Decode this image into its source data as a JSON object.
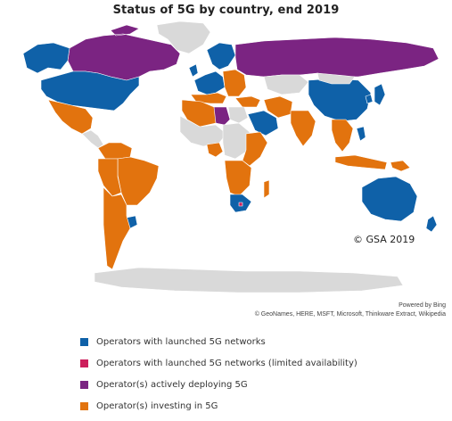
{
  "title": "Status of 5G by country, end 2019",
  "copyright": "© GSA 2019",
  "powered_by": "Powered by Bing",
  "credits": "© GeoNames, HERE, MSFT, Microsoft, Thinkware Extract, Wikipedia",
  "colors": {
    "launched": "#0f61a8",
    "limited": "#cc1f5c",
    "deploying": "#7b2482",
    "investing": "#e2730e",
    "no_data": "#d9d9d9",
    "border": "#ffffff"
  },
  "legend": [
    {
      "label": "Operators with launched 5G networks",
      "color": "#0f61a8",
      "key": "launched"
    },
    {
      "label": "Operators with launched 5G networks (limited availability)",
      "color": "#cc1f5c",
      "key": "limited"
    },
    {
      "label": "Operator(s) actively deploying 5G",
      "color": "#7b2482",
      "key": "deploying"
    },
    {
      "label": "Operator(s) investing in 5G",
      "color": "#e2730e",
      "key": "investing"
    }
  ],
  "regions": [
    {
      "name": "Canada",
      "status": "deploying"
    },
    {
      "name": "Alaska",
      "status": "launched"
    },
    {
      "name": "United States",
      "status": "launched"
    },
    {
      "name": "Greenland",
      "status": "no_data"
    },
    {
      "name": "Mexico",
      "status": "investing"
    },
    {
      "name": "Central America",
      "status": "no_data"
    },
    {
      "name": "Colombia / Venezuela",
      "status": "investing"
    },
    {
      "name": "Brazil",
      "status": "investing"
    },
    {
      "name": "Peru / Bolivia",
      "status": "investing"
    },
    {
      "name": "Uruguay",
      "status": "launched"
    },
    {
      "name": "Argentina / Chile",
      "status": "investing"
    },
    {
      "name": "UK / Ireland",
      "status": "launched"
    },
    {
      "name": "Western Europe",
      "status": "launched"
    },
    {
      "name": "Southern Europe",
      "status": "investing"
    },
    {
      "name": "Scandinavia",
      "status": "launched"
    },
    {
      "name": "Eastern Europe",
      "status": "investing"
    },
    {
      "name": "Russia",
      "status": "deploying"
    },
    {
      "name": "Kazakhstan",
      "status": "no_data"
    },
    {
      "name": "Turkey",
      "status": "investing"
    },
    {
      "name": "Saudi Arabia / Gulf",
      "status": "launched"
    },
    {
      "name": "Iran",
      "status": "investing"
    },
    {
      "name": "Egypt",
      "status": "no_data"
    },
    {
      "name": "Libya",
      "status": "deploying"
    },
    {
      "name": "Algeria / Morocco",
      "status": "investing"
    },
    {
      "name": "West Africa",
      "status": "no_data"
    },
    {
      "name": "Nigeria",
      "status": "investing"
    },
    {
      "name": "Central Africa",
      "status": "no_data"
    },
    {
      "name": "East Africa",
      "status": "investing"
    },
    {
      "name": "Southern Africa",
      "status": "investing"
    },
    {
      "name": "South Africa",
      "status": "launched"
    },
    {
      "name": "Lesotho",
      "status": "limited"
    },
    {
      "name": "Madagascar",
      "status": "investing"
    },
    {
      "name": "India",
      "status": "investing"
    },
    {
      "name": "China",
      "status": "launched"
    },
    {
      "name": "Mongolia",
      "status": "no_data"
    },
    {
      "name": "South Korea",
      "status": "launched"
    },
    {
      "name": "Japan",
      "status": "launched"
    },
    {
      "name": "Southeast Asia",
      "status": "investing"
    },
    {
      "name": "Philippines",
      "status": "launched"
    },
    {
      "name": "Indonesia",
      "status": "investing"
    },
    {
      "name": "Papua New Guinea",
      "status": "investing"
    },
    {
      "name": "Australia",
      "status": "launched"
    },
    {
      "name": "New Zealand",
      "status": "launched"
    },
    {
      "name": "Antarctica",
      "status": "no_data"
    }
  ]
}
